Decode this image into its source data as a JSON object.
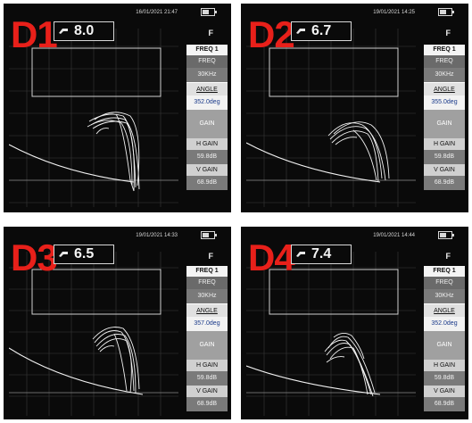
{
  "panels": [
    {
      "label": "D1",
      "readout": "8.0",
      "datetime": "16/01/2021  21:47",
      "mode": "F",
      "menu": {
        "freq1": "FREQ 1",
        "freq_label": "FREQ",
        "freq_value": "30KHz",
        "angle_label": "ANGLE",
        "angle_value": "352.0deg",
        "gain_label": "GAIN",
        "h_gain_label": "H GAIN",
        "h_gain_value": "59.8dB",
        "v_gain_label": "V GAIN",
        "v_gain_value": "68.9dB"
      }
    },
    {
      "label": "D2",
      "readout": "6.7",
      "datetime": "19/01/2021  14:25",
      "mode": "F",
      "menu": {
        "freq1": "FREQ 1",
        "freq_label": "FREQ",
        "freq_value": "30KHz",
        "angle_label": "ANGLE",
        "angle_value": "355.0deg",
        "gain_label": "GAIN",
        "h_gain_label": "H GAIN",
        "h_gain_value": "59.8dB",
        "v_gain_label": "V GAIN",
        "v_gain_value": "68.9dB"
      }
    },
    {
      "label": "D3",
      "readout": "6.5",
      "datetime": "19/01/2021  14:33",
      "mode": "F",
      "menu": {
        "freq1": "FREQ 1",
        "freq_label": "FREQ",
        "freq_value": "30KHz",
        "angle_label": "ANGLE",
        "angle_value": "357.0deg",
        "gain_label": "GAIN",
        "h_gain_label": "H GAIN",
        "h_gain_value": "59.8dB",
        "v_gain_label": "V GAIN",
        "v_gain_value": "68.9dB"
      }
    },
    {
      "label": "D4",
      "readout": "7.4",
      "datetime": "19/01/2021  14:44",
      "mode": "F",
      "menu": {
        "freq1": "FREQ 1",
        "freq_label": "FREQ",
        "freq_value": "30KHz",
        "angle_label": "ANGLE",
        "angle_value": "352.0deg",
        "gain_label": "GAIN",
        "h_gain_label": "H GAIN",
        "h_gain_value": "59.8dB",
        "v_gain_label": "V GAIN",
        "v_gain_value": "68.9dB"
      }
    }
  ],
  "colors": {
    "label": "#e8201a",
    "screen": "#0a0a0a",
    "trace": "#f2f2f2",
    "grid": "#3a3a3a"
  },
  "icons": [
    "probe-icon",
    "battery-icon"
  ]
}
